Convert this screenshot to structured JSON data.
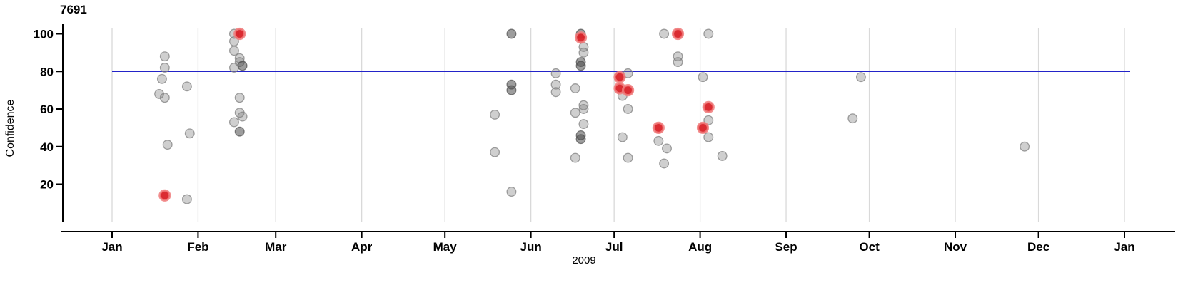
{
  "chart_data": {
    "type": "scatter",
    "title": "7691",
    "xlabel": "2009",
    "ylabel": "Confidence",
    "x_axis": {
      "tick_labels": [
        "Jan",
        "Feb",
        "Mar",
        "Apr",
        "May",
        "Jun",
        "Jul",
        "Aug",
        "Sep",
        "Oct",
        "Nov",
        "Dec",
        "Jan"
      ],
      "tick_days": [
        1,
        32,
        60,
        91,
        121,
        152,
        182,
        213,
        244,
        274,
        305,
        335,
        366
      ],
      "range_days": [
        1,
        366
      ],
      "grid": true
    },
    "y_axis": {
      "ticks": [
        20,
        40,
        60,
        80,
        100
      ],
      "range": [
        0,
        105
      ]
    },
    "reference_line": {
      "y": 80
    },
    "points": [
      {
        "date": "Jan 18",
        "day": 18,
        "confidence": 68,
        "color": "gray"
      },
      {
        "date": "Jan 19",
        "day": 19,
        "confidence": 76,
        "color": "gray"
      },
      {
        "date": "Jan 20",
        "day": 20,
        "confidence": 88,
        "color": "gray"
      },
      {
        "date": "Jan 20",
        "day": 20,
        "confidence": 82,
        "color": "gray"
      },
      {
        "date": "Jan 20",
        "day": 20,
        "confidence": 66,
        "color": "gray"
      },
      {
        "date": "Jan 21",
        "day": 21,
        "confidence": 41,
        "color": "gray"
      },
      {
        "date": "Jan 20",
        "day": 20,
        "confidence": 14,
        "color": "red"
      },
      {
        "date": "Jan 28",
        "day": 28,
        "confidence": 72,
        "color": "gray"
      },
      {
        "date": "Jan 28",
        "day": 28,
        "confidence": 12,
        "color": "gray"
      },
      {
        "date": "Jan 29",
        "day": 29,
        "confidence": 47,
        "color": "gray"
      },
      {
        "date": "Feb 14",
        "day": 45,
        "confidence": 100,
        "color": "gray"
      },
      {
        "date": "Feb 14",
        "day": 45,
        "confidence": 96,
        "color": "gray"
      },
      {
        "date": "Feb 14",
        "day": 45,
        "confidence": 91,
        "color": "gray"
      },
      {
        "date": "Feb 14",
        "day": 45,
        "confidence": 82,
        "color": "gray"
      },
      {
        "date": "Feb 14",
        "day": 45,
        "confidence": 53,
        "color": "gray"
      },
      {
        "date": "Feb 16",
        "day": 47,
        "confidence": 100,
        "color": "red"
      },
      {
        "date": "Feb 16",
        "day": 47,
        "confidence": 87,
        "color": "gray"
      },
      {
        "date": "Feb 16",
        "day": 47,
        "confidence": 85,
        "color": "gray"
      },
      {
        "date": "Feb 17",
        "day": 48,
        "confidence": 83,
        "color": "dark"
      },
      {
        "date": "Feb 16",
        "day": 47,
        "confidence": 66,
        "color": "gray"
      },
      {
        "date": "Feb 16",
        "day": 47,
        "confidence": 58,
        "color": "gray"
      },
      {
        "date": "Feb 17",
        "day": 48,
        "confidence": 56,
        "color": "gray"
      },
      {
        "date": "Feb 16",
        "day": 47,
        "confidence": 48,
        "color": "dark"
      },
      {
        "date": "May 19",
        "day": 139,
        "confidence": 57,
        "color": "gray"
      },
      {
        "date": "May 19",
        "day": 139,
        "confidence": 37,
        "color": "gray"
      },
      {
        "date": "May 25",
        "day": 145,
        "confidence": 100,
        "color": "dark"
      },
      {
        "date": "May 25",
        "day": 145,
        "confidence": 73,
        "color": "dark"
      },
      {
        "date": "May 25",
        "day": 145,
        "confidence": 70,
        "color": "dark"
      },
      {
        "date": "May 25",
        "day": 145,
        "confidence": 16,
        "color": "gray"
      },
      {
        "date": "Jun 10",
        "day": 161,
        "confidence": 79,
        "color": "gray"
      },
      {
        "date": "Jun 10",
        "day": 161,
        "confidence": 73,
        "color": "gray"
      },
      {
        "date": "Jun 10",
        "day": 161,
        "confidence": 69,
        "color": "gray"
      },
      {
        "date": "Jun 17",
        "day": 168,
        "confidence": 71,
        "color": "gray"
      },
      {
        "date": "Jun 17",
        "day": 168,
        "confidence": 58,
        "color": "gray"
      },
      {
        "date": "Jun 17",
        "day": 168,
        "confidence": 34,
        "color": "gray"
      },
      {
        "date": "Jun 19",
        "day": 170,
        "confidence": 100,
        "color": "dark"
      },
      {
        "date": "Jun 19",
        "day": 170,
        "confidence": 98,
        "color": "red"
      },
      {
        "date": "Jun 20",
        "day": 171,
        "confidence": 93,
        "color": "gray"
      },
      {
        "date": "Jun 20",
        "day": 171,
        "confidence": 90,
        "color": "gray"
      },
      {
        "date": "Jun 19",
        "day": 170,
        "confidence": 85,
        "color": "dark"
      },
      {
        "date": "Jun 19",
        "day": 170,
        "confidence": 83,
        "color": "dark"
      },
      {
        "date": "Jun 20",
        "day": 171,
        "confidence": 62,
        "color": "gray"
      },
      {
        "date": "Jun 20",
        "day": 171,
        "confidence": 60,
        "color": "gray"
      },
      {
        "date": "Jun 20",
        "day": 171,
        "confidence": 52,
        "color": "gray"
      },
      {
        "date": "Jun 19",
        "day": 170,
        "confidence": 46,
        "color": "dark"
      },
      {
        "date": "Jun 19",
        "day": 170,
        "confidence": 44,
        "color": "dark"
      },
      {
        "date": "Jul 3",
        "day": 184,
        "confidence": 77,
        "color": "red"
      },
      {
        "date": "Jul 3",
        "day": 184,
        "confidence": 71,
        "color": "red"
      },
      {
        "date": "Jul 4",
        "day": 185,
        "confidence": 67,
        "color": "gray"
      },
      {
        "date": "Jul 4",
        "day": 185,
        "confidence": 45,
        "color": "gray"
      },
      {
        "date": "Jul 6",
        "day": 187,
        "confidence": 79,
        "color": "gray"
      },
      {
        "date": "Jul 6",
        "day": 187,
        "confidence": 70,
        "color": "red"
      },
      {
        "date": "Jul 6",
        "day": 187,
        "confidence": 60,
        "color": "gray"
      },
      {
        "date": "Jul 6",
        "day": 187,
        "confidence": 34,
        "color": "gray"
      },
      {
        "date": "Jul 17",
        "day": 198,
        "confidence": 50,
        "color": "red"
      },
      {
        "date": "Jul 17",
        "day": 198,
        "confidence": 43,
        "color": "gray"
      },
      {
        "date": "Jul 19",
        "day": 200,
        "confidence": 100,
        "color": "gray"
      },
      {
        "date": "Jul 19",
        "day": 200,
        "confidence": 31,
        "color": "gray"
      },
      {
        "date": "Jul 20",
        "day": 201,
        "confidence": 39,
        "color": "gray"
      },
      {
        "date": "Jul 24",
        "day": 205,
        "confidence": 100,
        "color": "red"
      },
      {
        "date": "Jul 24",
        "day": 205,
        "confidence": 88,
        "color": "gray"
      },
      {
        "date": "Jul 24",
        "day": 205,
        "confidence": 85,
        "color": "gray"
      },
      {
        "date": "Aug 2",
        "day": 214,
        "confidence": 77,
        "color": "gray"
      },
      {
        "date": "Aug 2",
        "day": 214,
        "confidence": 50,
        "color": "red"
      },
      {
        "date": "Aug 4",
        "day": 216,
        "confidence": 100,
        "color": "gray"
      },
      {
        "date": "Aug 4",
        "day": 216,
        "confidence": 61,
        "color": "red"
      },
      {
        "date": "Aug 4",
        "day": 216,
        "confidence": 54,
        "color": "gray"
      },
      {
        "date": "Aug 4",
        "day": 216,
        "confidence": 45,
        "color": "gray"
      },
      {
        "date": "Aug 9",
        "day": 221,
        "confidence": 35,
        "color": "gray"
      },
      {
        "date": "Sep 25",
        "day": 268,
        "confidence": 55,
        "color": "gray"
      },
      {
        "date": "Sep 28",
        "day": 271,
        "confidence": 77,
        "color": "gray"
      },
      {
        "date": "Nov 26",
        "day": 330,
        "confidence": 40,
        "color": "gray"
      }
    ],
    "colors": {
      "gray_point": "#808080",
      "dark_point": "#4d4d4d",
      "red_point": "#d92127",
      "red_ring": "#f07d7d",
      "reference_line": "#2323c8",
      "gridline": "#d9d9d9",
      "axis": "#000000",
      "text": "#000000"
    }
  }
}
